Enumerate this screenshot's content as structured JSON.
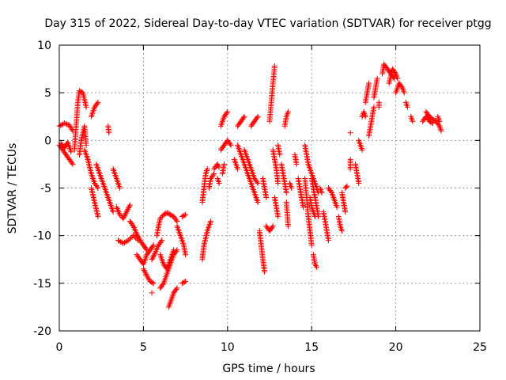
{
  "chart_data": {
    "type": "scatter",
    "title": "Day 315 of 2022, Sidereal Day-to-day VTEC variation (SDTVAR) for receiver ptgg",
    "xlabel": "GPS time / hours",
    "ylabel": "SDTVAR / TECUs",
    "xlim": [
      0,
      25
    ],
    "ylim": [
      -20,
      10
    ],
    "xticks": [
      0,
      5,
      10,
      15,
      20,
      25
    ],
    "yticks": [
      -20,
      -15,
      -10,
      -5,
      0,
      5,
      10
    ],
    "grid": true,
    "marker": "+",
    "color": "#ff0000",
    "segments": [
      [
        [
          0.0,
          1.5
        ],
        [
          0.3,
          1.8
        ],
        [
          0.6,
          1.6
        ],
        [
          0.8,
          1.0
        ]
      ],
      [
        [
          0.0,
          -0.5
        ],
        [
          0.2,
          -1.0
        ],
        [
          0.4,
          -1.5
        ],
        [
          0.6,
          -2.0
        ],
        [
          0.8,
          -2.5
        ]
      ],
      [
        [
          0.1,
          -0.3
        ],
        [
          0.3,
          -0.8
        ],
        [
          0.5,
          -0.2
        ],
        [
          0.7,
          -1.2
        ]
      ],
      [
        [
          0.9,
          -1.0
        ],
        [
          1.0,
          1.5
        ],
        [
          1.1,
          4.0
        ],
        [
          1.2,
          5.2
        ],
        [
          1.4,
          5.0
        ],
        [
          1.6,
          3.5
        ]
      ],
      [
        [
          1.2,
          -1.5
        ],
        [
          1.3,
          0.0
        ],
        [
          1.5,
          1.5
        ],
        [
          1.6,
          -0.5
        ]
      ],
      [
        [
          1.5,
          -1.0
        ],
        [
          1.7,
          -2.0
        ],
        [
          1.9,
          -3.5
        ],
        [
          2.1,
          -4.5
        ],
        [
          2.3,
          -5.0
        ]
      ],
      [
        [
          1.9,
          2.5
        ],
        [
          2.1,
          3.5
        ],
        [
          2.3,
          4.0
        ]
      ],
      [
        [
          1.9,
          -5.0
        ],
        [
          2.1,
          -6.5
        ],
        [
          2.3,
          -8.0
        ]
      ],
      [
        [
          2.2,
          -2.5
        ],
        [
          2.4,
          -3.5
        ],
        [
          2.6,
          -4.5
        ],
        [
          2.8,
          -5.5
        ],
        [
          3.0,
          -6.5
        ],
        [
          3.2,
          -7.5
        ]
      ],
      [
        [
          2.9,
          1.5
        ],
        [
          2.95,
          0.8
        ]
      ],
      [
        [
          3.2,
          -3.0
        ],
        [
          3.4,
          -4.0
        ],
        [
          3.6,
          -5.0
        ]
      ],
      [
        [
          3.4,
          -7.0
        ],
        [
          3.6,
          -7.8
        ],
        [
          3.8,
          -8.2
        ],
        [
          4.0,
          -7.5
        ],
        [
          4.2,
          -6.8
        ]
      ],
      [
        [
          3.5,
          -10.5
        ],
        [
          3.8,
          -10.8
        ],
        [
          4.1,
          -10.5
        ],
        [
          4.4,
          -10.0
        ],
        [
          4.7,
          -10.5
        ]
      ],
      [
        [
          4.2,
          -8.5
        ],
        [
          4.4,
          -9.0
        ],
        [
          4.6,
          -9.8
        ],
        [
          4.8,
          -10.5
        ],
        [
          5.0,
          -11.0
        ],
        [
          5.2,
          -11.5
        ]
      ],
      [
        [
          4.6,
          -12.0
        ],
        [
          4.8,
          -12.5
        ],
        [
          5.0,
          -13.0
        ],
        [
          5.2,
          -12.0
        ],
        [
          5.4,
          -11.5
        ],
        [
          5.6,
          -11.0
        ]
      ],
      [
        [
          5.0,
          -13.5
        ],
        [
          5.2,
          -14.2
        ],
        [
          5.4,
          -14.8
        ],
        [
          5.6,
          -15.0
        ]
      ],
      [
        [
          5.5,
          -12.5
        ],
        [
          5.7,
          -11.8
        ],
        [
          5.9,
          -11.0
        ],
        [
          6.1,
          -10.5
        ]
      ],
      [
        [
          5.5,
          -16.0
        ]
      ],
      [
        [
          5.8,
          -10.0
        ],
        [
          5.9,
          -9.0
        ],
        [
          6.0,
          -8.2
        ],
        [
          6.2,
          -7.8
        ],
        [
          6.4,
          -7.6
        ],
        [
          6.6,
          -7.8
        ],
        [
          6.8,
          -8.0
        ],
        [
          7.0,
          -8.5
        ]
      ],
      [
        [
          6.0,
          -12.0
        ],
        [
          6.2,
          -13.0
        ],
        [
          6.4,
          -13.5
        ],
        [
          6.6,
          -12.5
        ],
        [
          6.8,
          -11.5
        ]
      ],
      [
        [
          6.0,
          -15.5
        ],
        [
          6.2,
          -15.0
        ],
        [
          6.4,
          -14.0
        ],
        [
          6.6,
          -13.0
        ],
        [
          6.8,
          -12.0
        ],
        [
          7.0,
          -11.5
        ]
      ],
      [
        [
          6.5,
          -17.5
        ],
        [
          6.6,
          -17.0
        ],
        [
          6.8,
          -16.0
        ],
        [
          7.0,
          -15.5
        ]
      ],
      [
        [
          7.0,
          -9.0
        ],
        [
          7.2,
          -10.0
        ],
        [
          7.4,
          -11.0
        ],
        [
          7.5,
          -12.0
        ]
      ],
      [
        [
          7.3,
          -15.0
        ],
        [
          7.5,
          -14.8
        ]
      ],
      [
        [
          7.3,
          -8.0
        ],
        [
          7.5,
          -7.8
        ]
      ],
      [
        [
          8.5,
          -6.5
        ],
        [
          8.6,
          -5.0
        ],
        [
          8.7,
          -3.5
        ],
        [
          8.8,
          -3.0
        ]
      ],
      [
        [
          8.5,
          -12.5
        ],
        [
          8.6,
          -11.0
        ],
        [
          8.8,
          -9.5
        ],
        [
          9.0,
          -8.5
        ]
      ],
      [
        [
          8.9,
          -5.0
        ],
        [
          9.0,
          -4.0
        ],
        [
          9.2,
          -3.5
        ]
      ],
      [
        [
          9.2,
          -3.0
        ],
        [
          9.4,
          -2.5
        ],
        [
          9.5,
          -2.8
        ]
      ],
      [
        [
          9.4,
          -4.0
        ],
        [
          9.5,
          -4.5
        ]
      ],
      [
        [
          9.6,
          1.5
        ],
        [
          9.8,
          2.5
        ],
        [
          10.0,
          3.0
        ]
      ],
      [
        [
          9.6,
          -1.0
        ],
        [
          9.8,
          -0.5
        ],
        [
          10.0,
          0.0
        ],
        [
          10.2,
          -0.5
        ]
      ],
      [
        [
          9.7,
          -3.5
        ],
        [
          9.8,
          -2.5
        ]
      ],
      [
        [
          10.4,
          -2.0
        ],
        [
          10.5,
          -2.5
        ],
        [
          10.6,
          -3.0
        ]
      ],
      [
        [
          10.6,
          -0.5
        ],
        [
          10.8,
          -1.5
        ],
        [
          11.0,
          -2.5
        ],
        [
          11.2,
          -3.5
        ],
        [
          11.4,
          -4.5
        ],
        [
          11.6,
          -5.5
        ],
        [
          11.8,
          -6.5
        ]
      ],
      [
        [
          10.6,
          1.5
        ],
        [
          10.8,
          2.0
        ],
        [
          11.0,
          2.5
        ]
      ],
      [
        [
          11.4,
          1.5
        ],
        [
          11.6,
          2.0
        ],
        [
          11.8,
          2.5
        ]
      ],
      [
        [
          11.0,
          -1.0
        ],
        [
          11.2,
          -2.0
        ],
        [
          11.4,
          -3.0
        ],
        [
          11.6,
          -4.0
        ],
        [
          11.8,
          -4.5
        ]
      ],
      [
        [
          11.9,
          -9.5
        ],
        [
          12.0,
          -11.0
        ],
        [
          12.1,
          -12.5
        ],
        [
          12.2,
          -13.8
        ]
      ],
      [
        [
          12.1,
          -4.0
        ],
        [
          12.2,
          -5.0
        ],
        [
          12.3,
          -6.0
        ]
      ],
      [
        [
          12.3,
          -9.0
        ],
        [
          12.5,
          -9.5
        ],
        [
          12.7,
          -9.0
        ]
      ],
      [
        [
          12.5,
          2.0
        ],
        [
          12.6,
          4.0
        ],
        [
          12.7,
          6.0
        ],
        [
          12.8,
          7.8
        ]
      ],
      [
        [
          12.7,
          -1.0
        ],
        [
          12.8,
          -2.0
        ],
        [
          12.9,
          -3.0
        ],
        [
          13.0,
          -4.5
        ]
      ],
      [
        [
          12.8,
          -6.0
        ],
        [
          12.9,
          -7.0
        ],
        [
          13.0,
          -8.0
        ]
      ],
      [
        [
          13.0,
          -0.5
        ],
        [
          13.1,
          -1.5
        ]
      ],
      [
        [
          13.2,
          -2.5
        ],
        [
          13.3,
          -3.5
        ],
        [
          13.4,
          -4.5
        ],
        [
          13.5,
          -5.5
        ]
      ],
      [
        [
          13.4,
          1.5
        ],
        [
          13.5,
          2.5
        ],
        [
          13.6,
          3.0
        ]
      ],
      [
        [
          13.5,
          -6.5
        ],
        [
          13.6,
          -9.0
        ]
      ],
      [
        [
          13.7,
          -4.5
        ],
        [
          13.8,
          -5.0
        ]
      ],
      [
        [
          14.0,
          -1.5
        ],
        [
          14.1,
          -2.5
        ]
      ],
      [
        [
          14.2,
          -4.0
        ],
        [
          14.3,
          -5.0
        ],
        [
          14.4,
          -6.0
        ],
        [
          14.5,
          -7.0
        ]
      ],
      [
        [
          14.6,
          -0.5
        ],
        [
          14.7,
          -1.5
        ],
        [
          14.8,
          -2.5
        ],
        [
          15.0,
          -3.5
        ],
        [
          15.2,
          -4.5
        ],
        [
          15.4,
          -5.5
        ]
      ],
      [
        [
          14.6,
          -4.0
        ],
        [
          14.7,
          -6.0
        ],
        [
          14.8,
          -8.0
        ],
        [
          14.9,
          -9.5
        ],
        [
          15.0,
          -11.0
        ]
      ],
      [
        [
          14.9,
          -6.0
        ],
        [
          15.0,
          -7.0
        ],
        [
          15.1,
          -7.5
        ],
        [
          15.2,
          -8.0
        ]
      ],
      [
        [
          15.0,
          -4.0
        ],
        [
          15.1,
          -5.0
        ],
        [
          15.2,
          -6.0
        ],
        [
          15.3,
          -7.0
        ],
        [
          15.4,
          -8.0
        ]
      ],
      [
        [
          15.1,
          -12.0
        ],
        [
          15.2,
          -13.0
        ],
        [
          15.3,
          -13.3
        ]
      ],
      [
        [
          15.5,
          -5.0
        ],
        [
          15.6,
          -5.5
        ]
      ],
      [
        [
          15.7,
          -7.5
        ],
        [
          15.8,
          -8.5
        ],
        [
          15.9,
          -9.5
        ],
        [
          16.0,
          -10.5
        ]
      ],
      [
        [
          16.0,
          -5.0
        ],
        [
          16.2,
          -5.5
        ],
        [
          16.4,
          -6.5
        ],
        [
          16.5,
          -7.0
        ]
      ],
      [
        [
          16.6,
          -8.0
        ],
        [
          16.7,
          -9.0
        ],
        [
          16.8,
          -9.5
        ]
      ],
      [
        [
          16.8,
          -5.5
        ],
        [
          16.9,
          -6.5
        ],
        [
          17.0,
          -7.5
        ]
      ],
      [
        [
          17.0,
          -5.0
        ],
        [
          17.1,
          -4.8
        ]
      ],
      [
        [
          17.3,
          -2.0
        ],
        [
          17.3,
          -3.0
        ]
      ],
      [
        [
          17.3,
          0.8
        ]
      ],
      [
        [
          17.6,
          -2.5
        ],
        [
          17.7,
          -3.5
        ],
        [
          17.8,
          -4.5
        ]
      ],
      [
        [
          17.8,
          0.0
        ],
        [
          17.9,
          -0.5
        ],
        [
          18.0,
          -1.0
        ]
      ],
      [
        [
          18.0,
          2.5
        ],
        [
          18.1,
          3.0
        ],
        [
          18.2,
          2.5
        ]
      ],
      [
        [
          18.2,
          4.0
        ],
        [
          18.3,
          5.0
        ],
        [
          18.4,
          6.0
        ]
      ],
      [
        [
          18.4,
          0.5
        ],
        [
          18.5,
          1.5
        ],
        [
          18.6,
          2.5
        ],
        [
          18.7,
          3.5
        ]
      ],
      [
        [
          18.7,
          4.5
        ],
        [
          18.8,
          5.5
        ],
        [
          18.9,
          6.5
        ]
      ],
      [
        [
          19.0,
          3.5
        ],
        [
          19.0,
          4.0
        ]
      ],
      [
        [
          19.2,
          7.0
        ],
        [
          19.3,
          8.0
        ],
        [
          19.5,
          7.5
        ],
        [
          19.7,
          7.0
        ],
        [
          19.9,
          6.5
        ]
      ],
      [
        [
          19.6,
          6.0
        ],
        [
          19.8,
          7.5
        ],
        [
          20.0,
          7.0
        ],
        [
          20.1,
          6.5
        ]
      ],
      [
        [
          20.0,
          5.0
        ],
        [
          20.2,
          6.0
        ],
        [
          20.4,
          5.5
        ],
        [
          20.5,
          5.0
        ]
      ],
      [
        [
          20.6,
          4.0
        ],
        [
          20.7,
          3.5
        ]
      ],
      [
        [
          20.9,
          2.5
        ],
        [
          21.0,
          2.0
        ]
      ],
      [
        [
          21.6,
          2.0
        ],
        [
          21.8,
          2.5
        ],
        [
          22.0,
          2.0
        ],
        [
          22.2,
          1.8
        ]
      ],
      [
        [
          21.8,
          3.0
        ],
        [
          22.0,
          2.5
        ],
        [
          22.2,
          2.2
        ],
        [
          22.4,
          2.0
        ],
        [
          22.6,
          1.5
        ],
        [
          22.7,
          1.0
        ]
      ],
      [
        [
          22.5,
          2.5
        ],
        [
          22.6,
          2.0
        ]
      ]
    ]
  }
}
